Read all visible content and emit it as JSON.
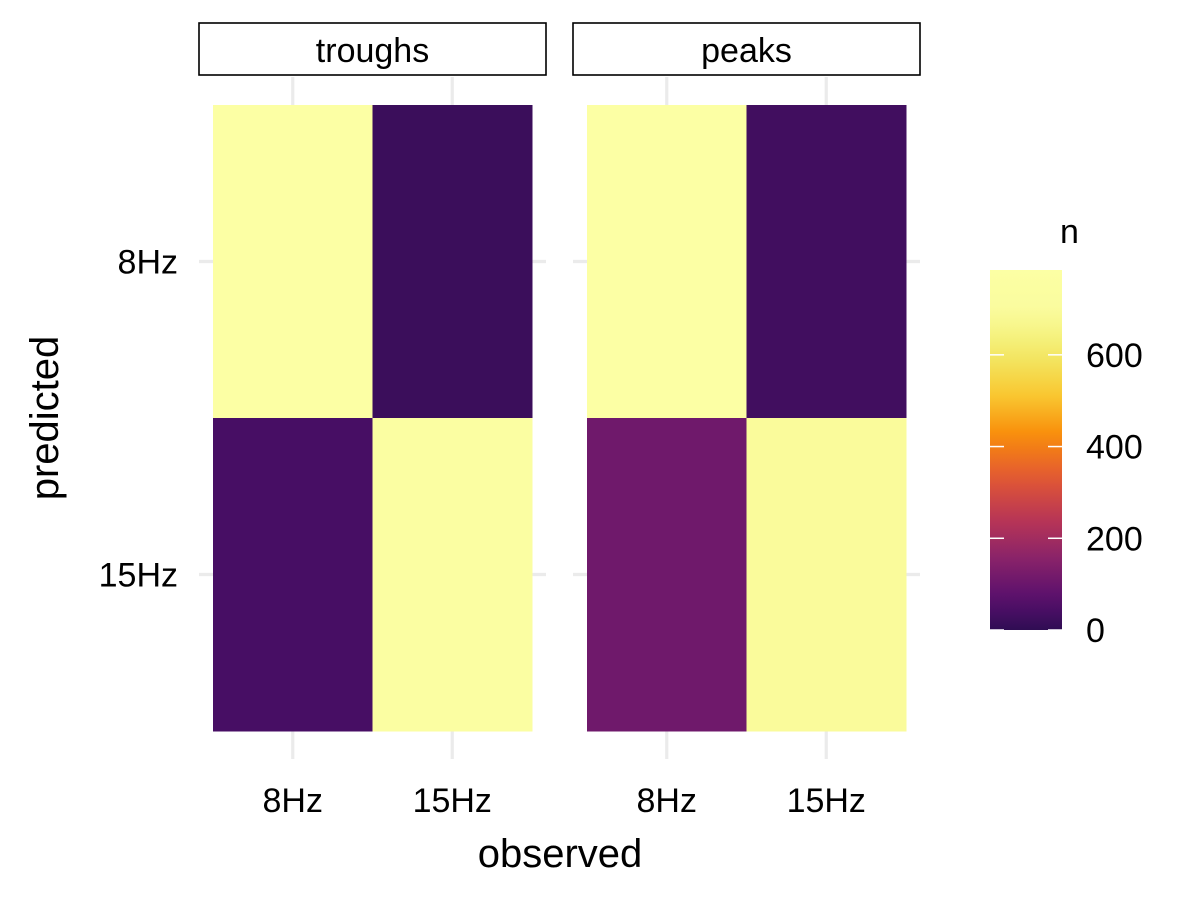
{
  "chart_data": {
    "type": "heatmap",
    "facets": [
      {
        "title": "troughs",
        "cells": [
          {
            "observed": "8Hz",
            "predicted": "8Hz",
            "n": 800
          },
          {
            "observed": "15Hz",
            "predicted": "8Hz",
            "n": 20
          },
          {
            "observed": "8Hz",
            "predicted": "15Hz",
            "n": 40
          },
          {
            "observed": "15Hz",
            "predicted": "15Hz",
            "n": 755
          }
        ]
      },
      {
        "title": "peaks",
        "cells": [
          {
            "observed": "8Hz",
            "predicted": "8Hz",
            "n": 780
          },
          {
            "observed": "15Hz",
            "predicted": "8Hz",
            "n": 30
          },
          {
            "observed": "8Hz",
            "predicted": "15Hz",
            "n": 110
          },
          {
            "observed": "15Hz",
            "predicted": "15Hz",
            "n": 690
          }
        ]
      }
    ],
    "x_categories": [
      "8Hz",
      "15Hz"
    ],
    "y_categories": [
      "8Hz",
      "15Hz"
    ],
    "xlabel": "observed",
    "ylabel": "predicted",
    "legend": {
      "title": "n",
      "ticks": [
        0,
        200,
        400,
        600
      ],
      "range": [
        0,
        785
      ],
      "colormap": "inferno",
      "placement": "right"
    },
    "grid": true
  }
}
